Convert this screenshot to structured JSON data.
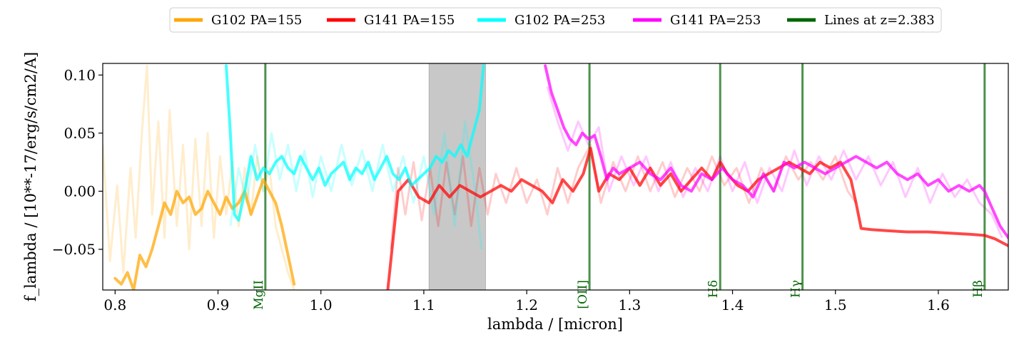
{
  "chart_data": {
    "type": "line",
    "xlabel": "lambda / [micron]",
    "ylabel": "f_lambda / [10**-17/erg/s/cm2/A]",
    "xlim": [
      0.788,
      1.668
    ],
    "ylim": [
      -0.085,
      0.11
    ],
    "xticks": [
      0.8,
      0.9,
      1.0,
      1.1,
      1.2,
      1.3,
      1.4,
      1.5,
      1.6
    ],
    "xtick_labels": [
      "0.8",
      "0.9",
      "1.0",
      "1.1",
      "1.2",
      "1.3",
      "1.4",
      "1.5",
      "1.6"
    ],
    "yticks": [
      -0.05,
      0.0,
      0.05,
      0.1
    ],
    "ytick_labels": [
      "−0.05",
      "0.00",
      "0.05",
      "0.10"
    ],
    "grid": false,
    "legend_position": "top-center (above plot)",
    "masked_region": {
      "x_start": 1.105,
      "x_end": 1.16,
      "color": "#c8c8c8"
    },
    "series": [
      {
        "name": "G102 PA=155",
        "color": "#ffa500",
        "x": [
          0.8,
          0.806,
          0.812,
          0.818,
          0.824,
          0.83,
          0.836,
          0.842,
          0.848,
          0.854,
          0.86,
          0.866,
          0.872,
          0.878,
          0.884,
          0.89,
          0.896,
          0.902,
          0.908,
          0.914,
          0.92,
          0.926,
          0.932,
          0.938,
          0.944,
          0.95,
          0.956,
          0.962,
          0.968,
          0.974
        ],
        "y": [
          -0.075,
          -0.08,
          -0.07,
          -0.085,
          -0.055,
          -0.065,
          -0.05,
          -0.03,
          -0.01,
          -0.02,
          0.0,
          -0.01,
          -0.005,
          -0.02,
          -0.015,
          0.0,
          -0.01,
          -0.02,
          -0.005,
          -0.015,
          -0.01,
          0.0,
          -0.02,
          -0.005,
          0.01,
          0.0,
          -0.01,
          -0.03,
          -0.055,
          -0.08
        ]
      },
      {
        "name": "G141 PA=155",
        "color": "#ff0000",
        "x": [
          1.065,
          1.075,
          1.085,
          1.095,
          1.105,
          1.115,
          1.125,
          1.135,
          1.145,
          1.155,
          1.165,
          1.175,
          1.185,
          1.195,
          1.205,
          1.215,
          1.225,
          1.235,
          1.245,
          1.255,
          1.262,
          1.27,
          1.28,
          1.29,
          1.3,
          1.31,
          1.32,
          1.33,
          1.34,
          1.35,
          1.36,
          1.37,
          1.38,
          1.388,
          1.395,
          1.405,
          1.415,
          1.425,
          1.435,
          1.445,
          1.455,
          1.465,
          1.475,
          1.485,
          1.495,
          1.505,
          1.515,
          1.52,
          1.525,
          1.535,
          1.55,
          1.57,
          1.59,
          1.61,
          1.63,
          1.645,
          1.655,
          1.668
        ],
        "y": [
          -0.085,
          0.0,
          0.01,
          -0.005,
          -0.01,
          0.005,
          -0.005,
          0.005,
          0.0,
          -0.005,
          0.0,
          0.005,
          0.0,
          0.01,
          0.005,
          0.0,
          -0.01,
          0.01,
          0.0,
          0.015,
          0.037,
          0.0,
          0.015,
          0.01,
          0.02,
          0.005,
          0.02,
          0.005,
          0.015,
          0.0,
          0.01,
          0.02,
          0.01,
          0.025,
          0.015,
          0.005,
          0.0,
          0.01,
          0.015,
          0.02,
          0.025,
          0.02,
          0.015,
          0.025,
          0.02,
          0.025,
          0.01,
          -0.01,
          -0.032,
          -0.033,
          -0.034,
          -0.035,
          -0.035,
          -0.036,
          -0.037,
          -0.038,
          -0.041,
          -0.047
        ]
      },
      {
        "name": "G102 PA=253",
        "color": "#00ffff",
        "x": [
          0.908,
          0.912,
          0.916,
          0.92,
          0.926,
          0.932,
          0.938,
          0.944,
          0.95,
          0.956,
          0.962,
          0.968,
          0.974,
          0.98,
          0.986,
          0.992,
          0.998,
          1.004,
          1.01,
          1.016,
          1.022,
          1.028,
          1.034,
          1.04,
          1.046,
          1.052,
          1.058,
          1.064,
          1.07,
          1.076,
          1.082,
          1.088,
          1.094,
          1.1,
          1.106,
          1.112,
          1.118,
          1.124,
          1.13,
          1.136,
          1.142,
          1.148,
          1.154,
          1.158
        ],
        "y": [
          0.108,
          0.05,
          -0.02,
          -0.025,
          0.0,
          0.03,
          0.01,
          0.02,
          0.015,
          0.025,
          0.03,
          0.02,
          0.015,
          0.03,
          0.02,
          0.01,
          0.02,
          0.005,
          0.015,
          0.02,
          0.025,
          0.01,
          0.02,
          0.015,
          0.025,
          0.01,
          0.02,
          0.03,
          0.015,
          0.01,
          0.02,
          0.005,
          0.01,
          0.015,
          0.02,
          0.03,
          0.025,
          0.035,
          0.03,
          0.04,
          0.03,
          0.05,
          0.07,
          0.108
        ]
      },
      {
        "name": "G141 PA=253",
        "color": "#ff00ff",
        "x": [
          1.218,
          1.224,
          1.23,
          1.236,
          1.242,
          1.248,
          1.254,
          1.26,
          1.266,
          1.272,
          1.278,
          1.284,
          1.29,
          1.3,
          1.31,
          1.32,
          1.33,
          1.34,
          1.35,
          1.36,
          1.37,
          1.38,
          1.39,
          1.4,
          1.41,
          1.42,
          1.43,
          1.44,
          1.45,
          1.46,
          1.47,
          1.48,
          1.49,
          1.5,
          1.51,
          1.52,
          1.53,
          1.54,
          1.55,
          1.56,
          1.57,
          1.58,
          1.59,
          1.6,
          1.61,
          1.62,
          1.63,
          1.64,
          1.645,
          1.65,
          1.66,
          1.668
        ],
        "y": [
          0.108,
          0.085,
          0.07,
          0.055,
          0.045,
          0.04,
          0.05,
          0.045,
          0.048,
          0.03,
          0.01,
          0.02,
          0.015,
          0.02,
          0.025,
          0.015,
          0.01,
          0.02,
          0.005,
          0.0,
          0.015,
          0.01,
          0.02,
          0.01,
          0.005,
          -0.005,
          0.015,
          0.0,
          0.025,
          0.02,
          0.025,
          0.02,
          0.015,
          0.02,
          0.025,
          0.03,
          0.025,
          0.02,
          0.025,
          0.015,
          0.01,
          0.015,
          0.005,
          0.01,
          0.0,
          0.005,
          0.0,
          0.005,
          0.0,
          -0.01,
          -0.03,
          -0.04
        ]
      }
    ],
    "noisy_series": [
      {
        "name": "G102 PA=155 (unsmoothed)",
        "color": "#ffa500",
        "opacity": 0.2,
        "x": [
          0.788,
          0.795,
          0.802,
          0.808,
          0.815,
          0.82,
          0.826,
          0.831,
          0.836,
          0.842,
          0.848,
          0.853,
          0.86,
          0.866,
          0.872,
          0.878,
          0.884,
          0.89,
          0.896,
          0.902,
          0.908,
          0.914,
          0.92,
          0.926,
          0.932,
          0.938,
          0.944,
          0.95,
          0.956,
          0.962,
          0.968,
          0.974
        ],
        "y": [
          0.04,
          -0.06,
          0.005,
          -0.07,
          0.02,
          -0.04,
          0.05,
          0.108,
          -0.02,
          0.06,
          -0.04,
          0.07,
          -0.03,
          0.04,
          -0.05,
          0.045,
          -0.03,
          0.05,
          -0.04,
          0.03,
          -0.02,
          0.025,
          -0.03,
          0.02,
          -0.02,
          0.03,
          0.0,
          0.02,
          -0.03,
          -0.05,
          -0.07,
          -0.085
        ]
      },
      {
        "name": "G141 PA=155 (unsmoothed)",
        "color": "#ff0000",
        "opacity": 0.2,
        "x": [
          1.068,
          1.075,
          1.082,
          1.09,
          1.098,
          1.106,
          1.114,
          1.122,
          1.13,
          1.138,
          1.146,
          1.154,
          1.162,
          1.17,
          1.18,
          1.19,
          1.2,
          1.21,
          1.22,
          1.23,
          1.24,
          1.25,
          1.262,
          1.272,
          1.284,
          1.296,
          1.308,
          1.32,
          1.332,
          1.344,
          1.356,
          1.368,
          1.38,
          1.392,
          1.404,
          1.416,
          1.428,
          1.44,
          1.452,
          1.464,
          1.476,
          1.488,
          1.5,
          1.512,
          1.52
        ],
        "y": [
          -0.05,
          0.02,
          -0.02,
          0.025,
          -0.025,
          0.02,
          -0.03,
          0.025,
          -0.02,
          0.03,
          -0.03,
          0.02,
          -0.02,
          0.015,
          -0.01,
          0.02,
          -0.01,
          0.01,
          -0.02,
          0.02,
          -0.01,
          0.02,
          0.04,
          -0.01,
          0.025,
          0.0,
          0.03,
          0.0,
          0.025,
          -0.005,
          0.02,
          0.0,
          0.03,
          0.005,
          0.02,
          -0.01,
          0.02,
          0.0,
          0.03,
          0.01,
          0.025,
          0.01,
          0.03,
          0.0,
          -0.01
        ]
      },
      {
        "name": "G102 PA=253 (unsmoothed)",
        "color": "#00ffff",
        "opacity": 0.22,
        "x": [
          0.912,
          0.92,
          0.928,
          0.936,
          0.944,
          0.952,
          0.96,
          0.968,
          0.976,
          0.984,
          0.992,
          1.0,
          1.01,
          1.02,
          1.03,
          1.04,
          1.05,
          1.06,
          1.07,
          1.08,
          1.09,
          1.1,
          1.11,
          1.12,
          1.13,
          1.14,
          1.15,
          1.156
        ],
        "y": [
          -0.03,
          0.02,
          -0.01,
          0.04,
          0.0,
          0.05,
          0.01,
          0.04,
          0.0,
          0.035,
          -0.005,
          0.03,
          0.0,
          0.04,
          0.005,
          0.035,
          0.0,
          0.04,
          0.0,
          0.03,
          -0.01,
          0.03,
          -0.02,
          0.05,
          -0.03,
          0.06,
          0.0,
          -0.05
        ]
      },
      {
        "name": "G141 PA=253 (unsmoothed)",
        "color": "#ff00ff",
        "opacity": 0.22,
        "x": [
          1.22,
          1.23,
          1.24,
          1.25,
          1.26,
          1.27,
          1.28,
          1.292,
          1.304,
          1.316,
          1.328,
          1.34,
          1.352,
          1.364,
          1.376,
          1.388,
          1.4,
          1.412,
          1.424,
          1.436,
          1.448,
          1.46,
          1.472,
          1.484,
          1.496,
          1.508,
          1.52,
          1.532,
          1.544,
          1.556,
          1.568,
          1.58,
          1.592,
          1.604,
          1.616,
          1.628,
          1.64,
          1.652,
          1.662
        ],
        "y": [
          0.09,
          0.06,
          0.035,
          0.06,
          0.04,
          0.055,
          0.0,
          0.03,
          0.005,
          0.03,
          0.0,
          0.025,
          -0.005,
          0.02,
          0.0,
          0.03,
          0.0,
          0.025,
          -0.01,
          0.02,
          0.0,
          0.035,
          0.005,
          0.03,
          0.01,
          0.035,
          0.01,
          0.03,
          0.005,
          0.025,
          -0.005,
          0.02,
          -0.01,
          0.015,
          -0.005,
          0.01,
          -0.01,
          -0.02,
          -0.04
        ]
      }
    ],
    "emission_lines": {
      "name": "Lines at z=2.383",
      "color": "#006400",
      "lines": [
        {
          "label": "MgII",
          "x": 0.946
        },
        {
          "label": "[OII]",
          "x": 1.261
        },
        {
          "label": "Hδ",
          "x": 1.388
        },
        {
          "label": "Hγ",
          "x": 1.468
        },
        {
          "label": "Hβ",
          "x": 1.645
        }
      ]
    }
  }
}
